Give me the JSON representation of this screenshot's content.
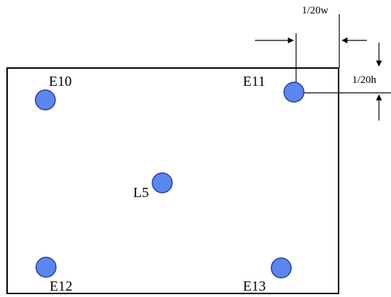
{
  "diagram": {
    "labels": {
      "e10": "E10",
      "e11": "E11",
      "e12": "E12",
      "e13": "E13",
      "l5": "L5",
      "width_margin": "1/20w",
      "height_margin": "1/20h"
    },
    "colors": {
      "dot_fill": "#5b86f0",
      "dot_stroke": "#1f3f9a",
      "line": "#000000"
    }
  }
}
